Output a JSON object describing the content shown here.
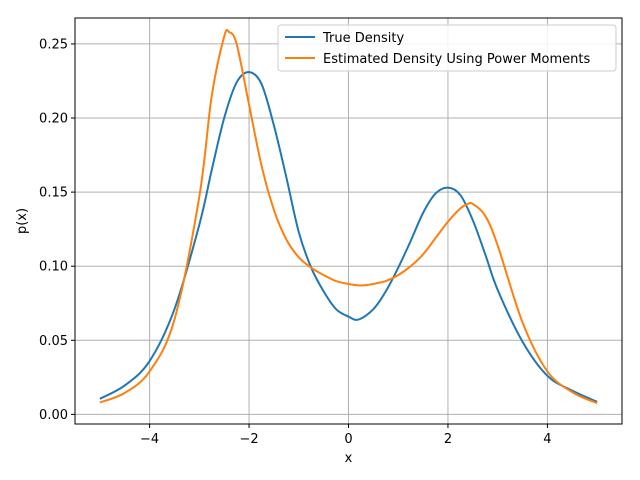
{
  "chart_data": {
    "type": "line",
    "title": "",
    "xlabel": "x",
    "ylabel": "p(x)",
    "xlim": [
      -5.5,
      5.5
    ],
    "ylim": [
      -0.0065,
      0.2675
    ],
    "grid": true,
    "legend_position": "top-right",
    "x_ticks": [
      -4,
      -2,
      0,
      2,
      4
    ],
    "x_tick_labels": [
      "−4",
      "−2",
      "0",
      "2",
      "4"
    ],
    "y_ticks": [
      0.0,
      0.05,
      0.1,
      0.15,
      0.2,
      0.25
    ],
    "y_tick_labels": [
      "0.00",
      "0.05",
      "0.10",
      "0.15",
      "0.20",
      "0.25"
    ],
    "series": [
      {
        "name": "True Density",
        "color": "#1f77b4",
        "x": [
          -5.0,
          -4.5,
          -4.0,
          -3.5,
          -3.0,
          -2.75,
          -2.5,
          -2.25,
          -2.0,
          -1.75,
          -1.5,
          -1.25,
          -1.0,
          -0.75,
          -0.5,
          -0.25,
          0.0,
          0.2,
          0.5,
          0.75,
          1.0,
          1.25,
          1.5,
          1.75,
          2.0,
          2.25,
          2.5,
          2.75,
          3.0,
          3.5,
          4.0,
          4.5,
          5.0
        ],
        "y": [
          0.0105,
          0.0195,
          0.036,
          0.071,
          0.128,
          0.165,
          0.2,
          0.224,
          0.231,
          0.223,
          0.195,
          0.16,
          0.123,
          0.099,
          0.083,
          0.071,
          0.066,
          0.064,
          0.071,
          0.083,
          0.099,
          0.117,
          0.136,
          0.149,
          0.153,
          0.148,
          0.131,
          0.108,
          0.084,
          0.049,
          0.026,
          0.016,
          0.0085
        ]
      },
      {
        "name": "Estimated Density Using Power Moments",
        "color": "#ff7f0e",
        "x": [
          -5.0,
          -4.5,
          -4.0,
          -3.5,
          -3.0,
          -2.75,
          -2.5,
          -2.4,
          -2.25,
          -2.0,
          -1.75,
          -1.5,
          -1.25,
          -1.0,
          -0.75,
          -0.5,
          -0.25,
          0.0,
          0.25,
          0.5,
          0.75,
          1.0,
          1.25,
          1.5,
          1.75,
          2.0,
          2.25,
          2.4,
          2.5,
          2.75,
          3.0,
          3.5,
          4.0,
          4.5,
          5.0
        ],
        "y": [
          0.008,
          0.0145,
          0.029,
          0.064,
          0.147,
          0.215,
          0.255,
          0.258,
          0.25,
          0.209,
          0.168,
          0.138,
          0.118,
          0.106,
          0.099,
          0.094,
          0.09,
          0.088,
          0.087,
          0.088,
          0.09,
          0.094,
          0.1,
          0.108,
          0.119,
          0.13,
          0.139,
          0.142,
          0.142,
          0.134,
          0.114,
          0.062,
          0.029,
          0.015,
          0.0075
        ]
      }
    ]
  }
}
